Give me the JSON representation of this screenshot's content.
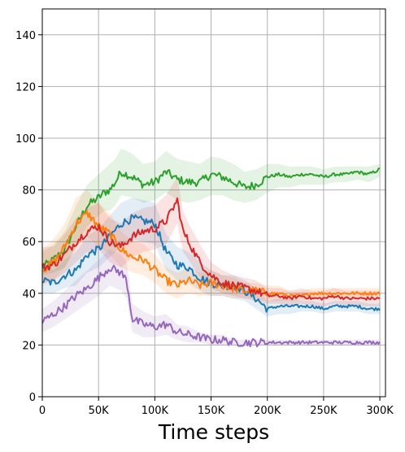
{
  "chart_data": {
    "type": "line",
    "title": "",
    "xlabel": "Time steps",
    "ylabel": "",
    "xlim": [
      0,
      305000
    ],
    "ylim": [
      0,
      150
    ],
    "x_ticks": [
      0,
      50000,
      100000,
      150000,
      200000,
      250000,
      300000
    ],
    "x_tick_labels": [
      "0",
      "50K",
      "100K",
      "150K",
      "200K",
      "250K",
      "300K"
    ],
    "y_ticks": [
      0,
      20,
      40,
      60,
      80,
      100,
      120,
      140
    ],
    "y_tick_labels": [
      "0",
      "20",
      "40",
      "60",
      "80",
      "100",
      "120",
      "140"
    ],
    "grid": true,
    "legend": "none",
    "shaded_bands": true,
    "series": [
      {
        "color": "#2ca02c",
        "x": [
          0,
          10000,
          20000,
          30000,
          40000,
          50000,
          55000,
          60000,
          65000,
          70000,
          80000,
          90000,
          100000,
          110000,
          120000,
          130000,
          140000,
          150000,
          160000,
          170000,
          180000,
          190000,
          200000,
          210000,
          220000,
          230000,
          240000,
          250000,
          260000,
          270000,
          280000,
          290000,
          300000
        ],
        "values": [
          50,
          53,
          57,
          66,
          74,
          77,
          79,
          80,
          83,
          87,
          85,
          82,
          83,
          87,
          84,
          83,
          83,
          86,
          85,
          83,
          81,
          82,
          85,
          86,
          85,
          86,
          86,
          85,
          86,
          86,
          87,
          86,
          88
        ],
        "band": [
          [
            47,
            56
          ],
          [
            48,
            59
          ],
          [
            50,
            64
          ],
          [
            58,
            74
          ],
          [
            66,
            82
          ],
          [
            70,
            86
          ],
          [
            72,
            88
          ],
          [
            72,
            90
          ],
          [
            74,
            92
          ],
          [
            78,
            96
          ],
          [
            77,
            94
          ],
          [
            75,
            90
          ],
          [
            76,
            91
          ],
          [
            79,
            95
          ],
          [
            76,
            92
          ],
          [
            75,
            91
          ],
          [
            76,
            90
          ],
          [
            78,
            93
          ],
          [
            78,
            92
          ],
          [
            76,
            90
          ],
          [
            75,
            87
          ],
          [
            76,
            88
          ],
          [
            79,
            90
          ],
          [
            81,
            90
          ],
          [
            81,
            89
          ],
          [
            82,
            89
          ],
          [
            82,
            89
          ],
          [
            82,
            88
          ],
          [
            83,
            89
          ],
          [
            83,
            89
          ],
          [
            84,
            89
          ],
          [
            83,
            89
          ],
          [
            85,
            90
          ]
        ]
      },
      {
        "color": "#1f77b4",
        "x": [
          0,
          10000,
          20000,
          30000,
          40000,
          50000,
          60000,
          70000,
          80000,
          90000,
          100000,
          110000,
          120000,
          130000,
          140000,
          150000,
          160000,
          170000,
          180000,
          190000,
          200000,
          210000,
          220000,
          230000,
          240000,
          250000,
          260000,
          270000,
          280000,
          290000,
          300000
        ],
        "values": [
          45,
          44,
          47,
          49,
          55,
          57,
          62,
          67,
          69,
          68,
          67,
          56,
          51,
          50,
          46,
          44,
          43,
          43,
          41,
          38,
          34,
          35,
          35,
          35,
          35,
          34,
          35,
          35,
          35,
          34,
          34
        ],
        "band": [
          [
            40,
            52
          ],
          [
            40,
            49
          ],
          [
            42,
            53
          ],
          [
            43,
            56
          ],
          [
            48,
            62
          ],
          [
            50,
            65
          ],
          [
            54,
            70
          ],
          [
            58,
            75
          ],
          [
            61,
            77
          ],
          [
            60,
            76
          ],
          [
            59,
            75
          ],
          [
            49,
            63
          ],
          [
            45,
            58
          ],
          [
            44,
            56
          ],
          [
            41,
            52
          ],
          [
            39,
            49
          ],
          [
            39,
            47
          ],
          [
            38,
            47
          ],
          [
            37,
            45
          ],
          [
            34,
            42
          ],
          [
            31,
            37
          ],
          [
            32,
            38
          ],
          [
            32,
            38
          ],
          [
            33,
            37
          ],
          [
            33,
            37
          ],
          [
            32,
            36
          ],
          [
            33,
            37
          ],
          [
            33,
            37
          ],
          [
            33,
            37
          ],
          [
            32,
            36
          ],
          [
            32,
            36
          ]
        ]
      },
      {
        "color": "#ff7f0e",
        "x": [
          0,
          10000,
          20000,
          30000,
          40000,
          50000,
          60000,
          70000,
          80000,
          90000,
          100000,
          110000,
          120000,
          130000,
          140000,
          150000,
          160000,
          170000,
          180000,
          190000,
          200000,
          210000,
          220000,
          230000,
          240000,
          250000,
          260000,
          270000,
          280000,
          290000,
          300000
        ],
        "values": [
          49,
          52,
          58,
          67,
          71,
          66,
          63,
          57,
          54,
          53,
          49,
          45,
          43,
          45,
          43,
          44,
          43,
          42,
          41,
          41,
          40,
          40,
          39,
          39,
          40,
          40,
          40,
          40,
          40,
          40,
          40
        ],
        "band": [
          [
            43,
            57
          ],
          [
            45,
            61
          ],
          [
            50,
            67
          ],
          [
            58,
            77
          ],
          [
            62,
            80
          ],
          [
            58,
            75
          ],
          [
            55,
            71
          ],
          [
            50,
            64
          ],
          [
            48,
            60
          ],
          [
            47,
            59
          ],
          [
            44,
            55
          ],
          [
            40,
            50
          ],
          [
            38,
            48
          ],
          [
            40,
            50
          ],
          [
            39,
            48
          ],
          [
            39,
            49
          ],
          [
            39,
            47
          ],
          [
            38,
            46
          ],
          [
            38,
            44
          ],
          [
            38,
            44
          ],
          [
            37,
            43
          ],
          [
            37,
            43
          ],
          [
            37,
            41
          ],
          [
            37,
            41
          ],
          [
            38,
            42
          ],
          [
            38,
            42
          ],
          [
            38,
            42
          ],
          [
            38,
            42
          ],
          [
            38,
            42
          ],
          [
            38,
            42
          ],
          [
            38,
            42
          ]
        ]
      },
      {
        "color": "#d62728",
        "x": [
          0,
          10000,
          20000,
          30000,
          40000,
          50000,
          60000,
          70000,
          80000,
          90000,
          100000,
          110000,
          120000,
          125000,
          130000,
          140000,
          150000,
          160000,
          170000,
          180000,
          190000,
          200000,
          210000,
          220000,
          230000,
          240000,
          250000,
          260000,
          270000,
          280000,
          290000,
          300000
        ],
        "values": [
          50,
          51,
          55,
          60,
          64,
          66,
          60,
          58,
          62,
          64,
          65,
          68,
          76,
          64,
          60,
          52,
          47,
          44,
          43,
          42,
          41,
          39,
          39,
          38,
          39,
          38,
          38,
          39,
          38,
          38,
          38,
          38
        ],
        "band": [
          [
            44,
            58
          ],
          [
            45,
            58
          ],
          [
            48,
            63
          ],
          [
            52,
            69
          ],
          [
            56,
            73
          ],
          [
            57,
            75
          ],
          [
            52,
            69
          ],
          [
            50,
            67
          ],
          [
            54,
            71
          ],
          [
            56,
            73
          ],
          [
            57,
            74
          ],
          [
            59,
            78
          ],
          [
            67,
            85
          ],
          [
            56,
            72
          ],
          [
            53,
            67
          ],
          [
            46,
            59
          ],
          [
            42,
            52
          ],
          [
            40,
            49
          ],
          [
            39,
            47
          ],
          [
            38,
            46
          ],
          [
            37,
            45
          ],
          [
            36,
            42
          ],
          [
            36,
            42
          ],
          [
            35,
            41
          ],
          [
            36,
            42
          ],
          [
            35,
            41
          ],
          [
            35,
            41
          ],
          [
            36,
            42
          ],
          [
            35,
            41
          ],
          [
            35,
            41
          ],
          [
            35,
            41
          ],
          [
            35,
            41
          ]
        ]
      },
      {
        "color": "#9467bd",
        "x": [
          0,
          10000,
          20000,
          30000,
          40000,
          50000,
          60000,
          70000,
          75000,
          80000,
          90000,
          100000,
          110000,
          120000,
          130000,
          140000,
          150000,
          160000,
          170000,
          180000,
          190000,
          200000,
          210000,
          220000,
          230000,
          240000,
          250000,
          260000,
          270000,
          280000,
          290000,
          300000
        ],
        "values": [
          29,
          32,
          35,
          39,
          42,
          46,
          50,
          48,
          45,
          30,
          28,
          27,
          28,
          25,
          24,
          23,
          22,
          22,
          21,
          21,
          21,
          21,
          21,
          21,
          21,
          21,
          21,
          21,
          21,
          21,
          21,
          21
        ],
        "band": [
          [
            25,
            34
          ],
          [
            27,
            37
          ],
          [
            30,
            41
          ],
          [
            33,
            45
          ],
          [
            36,
            49
          ],
          [
            39,
            53
          ],
          [
            43,
            57
          ],
          [
            41,
            55
          ],
          [
            38,
            52
          ],
          [
            25,
            36
          ],
          [
            23,
            33
          ],
          [
            23,
            31
          ],
          [
            24,
            32
          ],
          [
            22,
            28
          ],
          [
            21,
            27
          ],
          [
            21,
            25
          ],
          [
            20,
            24
          ],
          [
            20,
            24
          ],
          [
            20,
            22
          ],
          [
            20,
            22
          ],
          [
            20,
            22
          ],
          [
            20,
            22
          ],
          [
            20,
            22
          ],
          [
            20,
            22
          ],
          [
            20,
            22
          ],
          [
            20,
            22
          ],
          [
            20,
            22
          ],
          [
            20,
            22
          ],
          [
            20,
            22
          ],
          [
            20,
            22
          ],
          [
            20,
            22
          ],
          [
            20,
            22
          ]
        ]
      }
    ]
  }
}
